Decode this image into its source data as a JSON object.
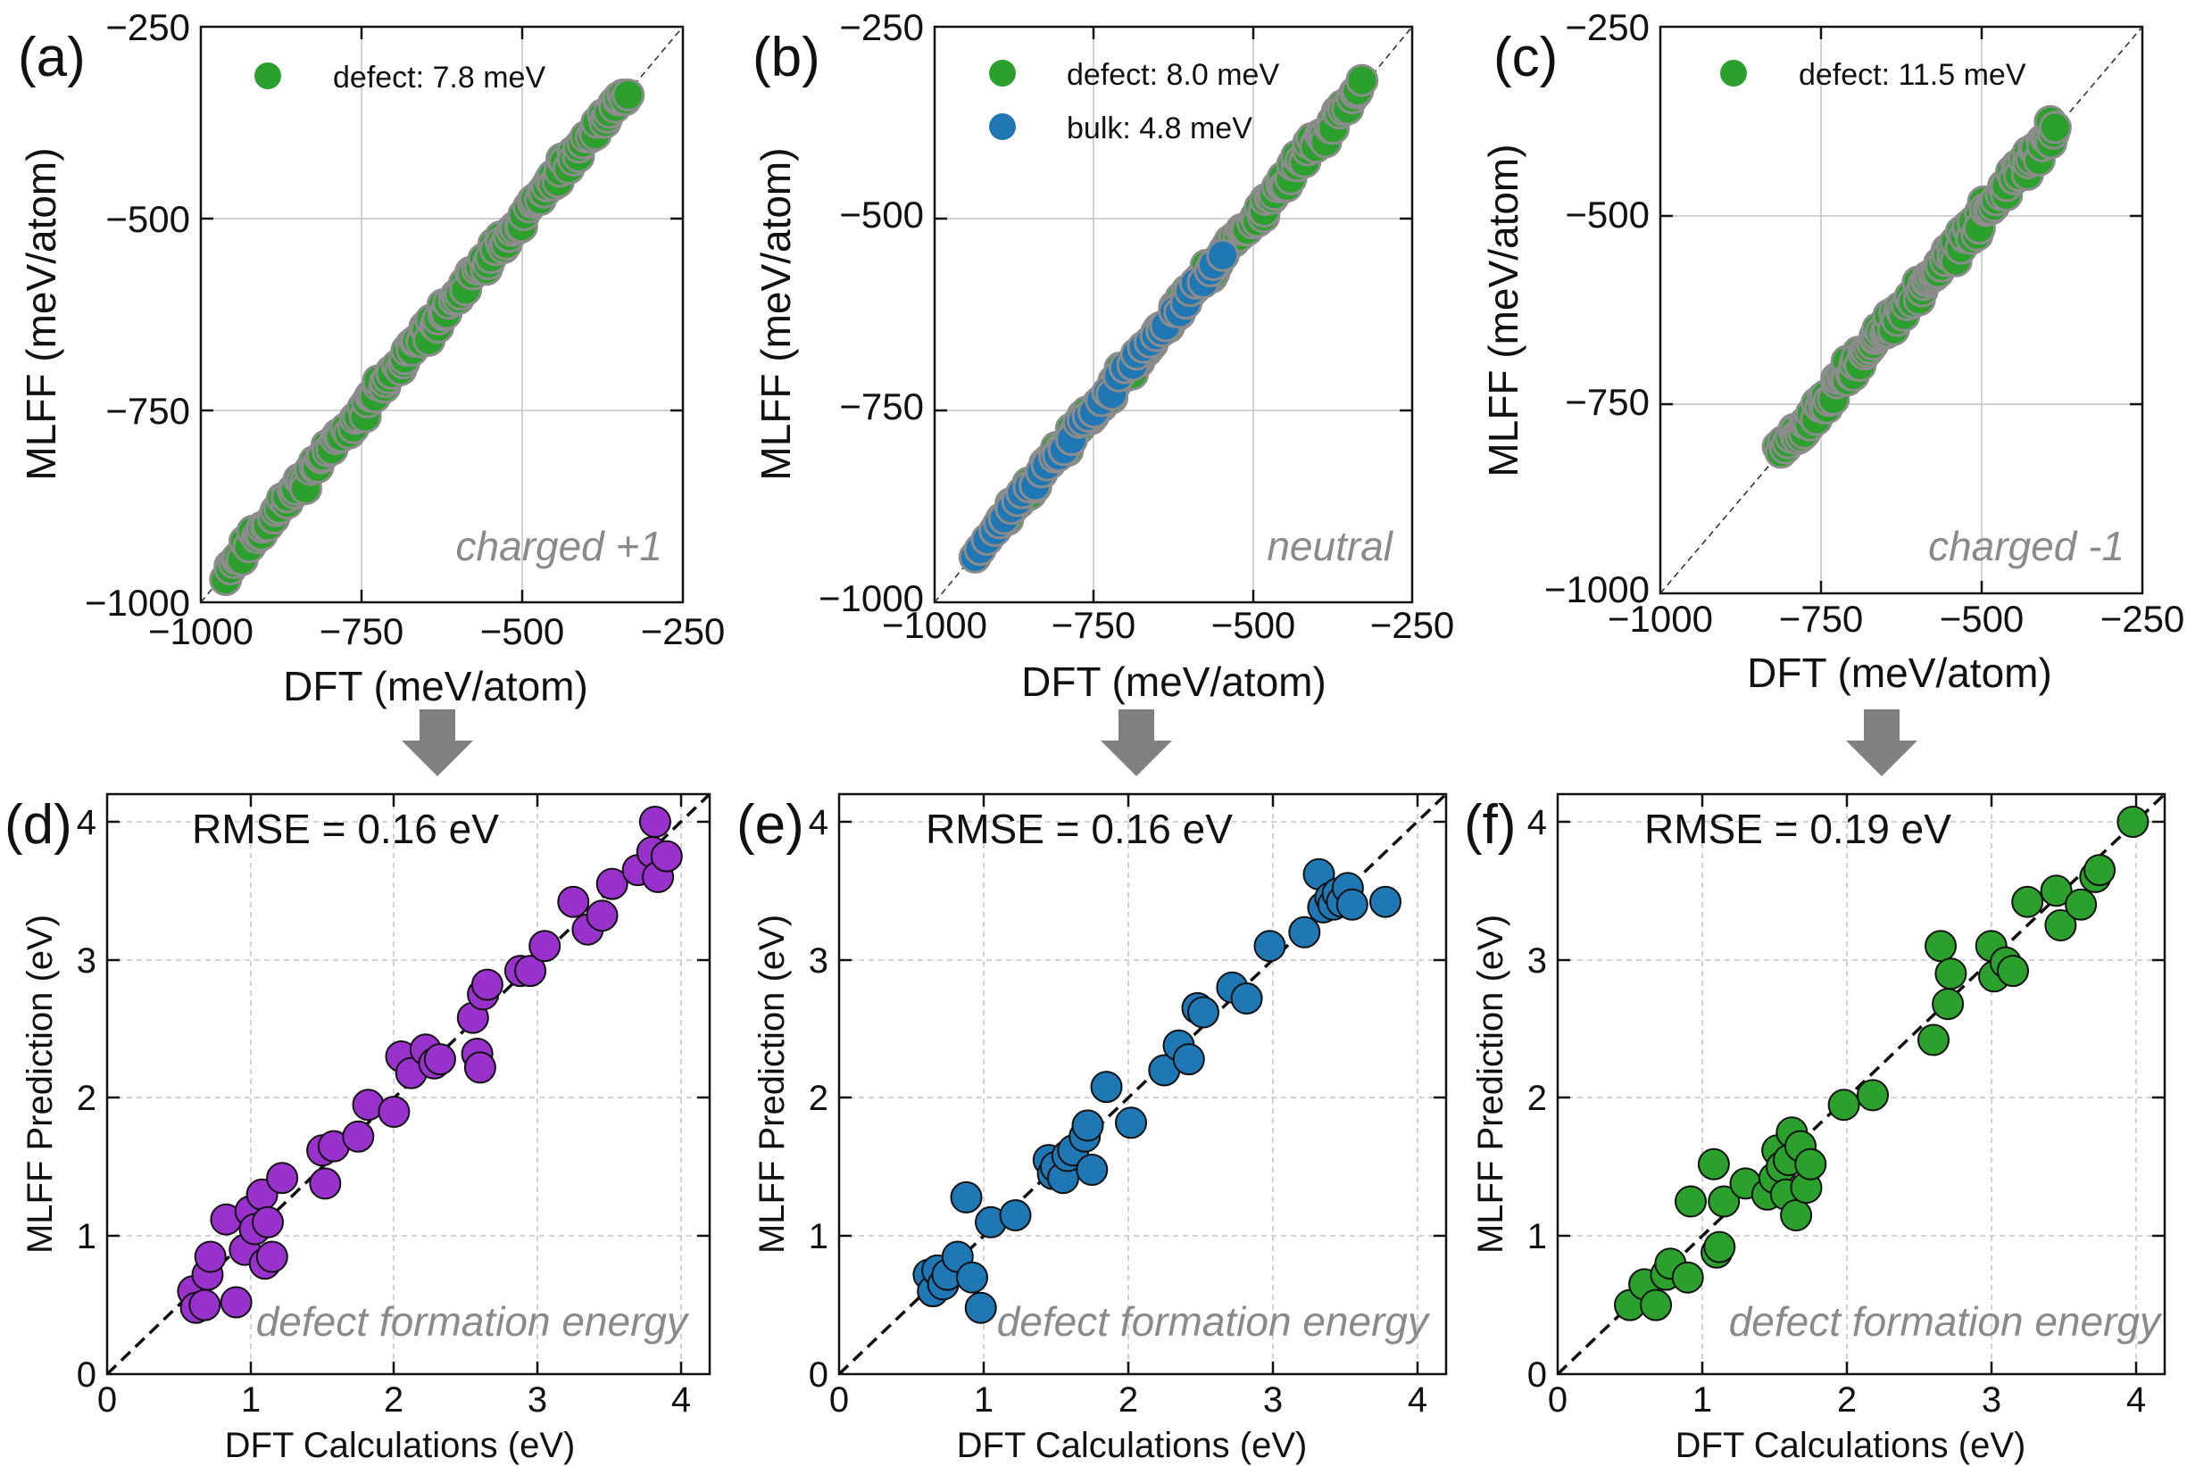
{
  "figure": {
    "colors": {
      "green": "#2ca02c",
      "blue": "#1f77b4",
      "purple": "#9932cc",
      "scatter_edge_top": "#8c8c8c",
      "arrow": "#808080",
      "annotation": "#8a8a8a",
      "grid": "#c4c4c4"
    },
    "arrow_icon": "down-arrow-icon"
  },
  "chart_data": [
    {
      "id": "a",
      "type": "scatter",
      "panel_label": "(a)",
      "title": "",
      "xlabel": "DFT (meV/atom)",
      "ylabel": "MLFF (meV/atom)",
      "xlim": [
        -1000,
        -250
      ],
      "ylim": [
        -1000,
        -250
      ],
      "xticks": [
        -1000,
        -750,
        -500,
        -250
      ],
      "xtick_labels": [
        "−1000",
        "−750",
        "−500",
        "−250"
      ],
      "yticks": [
        -1000,
        -750,
        -500,
        -250
      ],
      "ytick_labels": [
        "−1000",
        "−750",
        "−500",
        "−250"
      ],
      "grid": true,
      "diagonal": true,
      "diagonal_style": "thin",
      "legend": [
        {
          "label": "defect: 7.8 meV",
          "color": "#2ca02c"
        }
      ],
      "legend_position": "top-left",
      "annotation": "charged +1",
      "annotation_position": "bottom-right",
      "series": [
        {
          "name": "defect",
          "color": "#2ca02c",
          "range": [
            -960,
            -335
          ],
          "noise": 8,
          "count": 150,
          "seed": 11
        }
      ]
    },
    {
      "id": "b",
      "type": "scatter",
      "panel_label": "(b)",
      "title": "",
      "xlabel": "DFT (meV/atom)",
      "ylabel": "MLFF (meV/atom)",
      "xlim": [
        -1000,
        -250
      ],
      "ylim": [
        -1000,
        -250
      ],
      "xticks": [
        -1000,
        -750,
        -500,
        -250
      ],
      "xtick_labels": [
        "−1000",
        "−750",
        "−500",
        "−250"
      ],
      "yticks": [
        -1000,
        -750,
        -500,
        -250
      ],
      "ytick_labels": [
        "−1000",
        "−750",
        "−500",
        "−250"
      ],
      "grid": true,
      "diagonal": true,
      "diagonal_style": "thin",
      "legend": [
        {
          "label": "defect: 8.0 meV",
          "color": "#2ca02c"
        },
        {
          "label": "bulk: 4.8 meV",
          "color": "#1f77b4"
        }
      ],
      "legend_position": "top-left",
      "annotation": "neutral",
      "annotation_position": "bottom-right",
      "series": [
        {
          "name": "defect",
          "color": "#2ca02c",
          "range": [
            -900,
            -330
          ],
          "noise": 9,
          "count": 140,
          "seed": 23
        },
        {
          "name": "bulk",
          "color": "#1f77b4",
          "range": [
            -935,
            -550
          ],
          "noise": 5,
          "count": 42,
          "seed": 37
        }
      ]
    },
    {
      "id": "c",
      "type": "scatter",
      "panel_label": "(c)",
      "title": "",
      "xlabel": "DFT (meV/atom)",
      "ylabel": "MLFF (meV/atom)",
      "xlim": [
        -1000,
        -250
      ],
      "ylim": [
        -1000,
        -250
      ],
      "xticks": [
        -1000,
        -750,
        -500,
        -250
      ],
      "xtick_labels": [
        "−1000",
        "−750",
        "−500",
        "−250"
      ],
      "yticks": [
        -1000,
        -750,
        -500,
        -250
      ],
      "ytick_labels": [
        "−1000",
        "−750",
        "−500",
        "−250"
      ],
      "grid": true,
      "diagonal": true,
      "diagonal_style": "thin",
      "legend": [
        {
          "label": "defect: 11.5 meV",
          "color": "#2ca02c"
        }
      ],
      "legend_position": "top-left",
      "annotation": "charged -1",
      "annotation_position": "bottom-right",
      "series": [
        {
          "name": "defect",
          "color": "#2ca02c",
          "range": [
            -815,
            -385
          ],
          "noise": 11,
          "count": 130,
          "seed": 51
        }
      ]
    },
    {
      "id": "d",
      "type": "scatter",
      "panel_label": "(d)",
      "title": "RMSE = 0.16 eV",
      "xlabel": "DFT Calculations (eV)",
      "ylabel": "MLFF Prediction (eV)",
      "xlim": [
        0,
        4.2
      ],
      "ylim": [
        0,
        4.2
      ],
      "xticks": [
        0,
        1,
        2,
        3,
        4
      ],
      "xtick_labels": [
        "0",
        "1",
        "2",
        "3",
        "4"
      ],
      "yticks": [
        0,
        1,
        2,
        3,
        4
      ],
      "ytick_labels": [
        "0",
        "1",
        "2",
        "3",
        "4"
      ],
      "grid": true,
      "grid_style": "dashed",
      "diagonal": true,
      "diagonal_style": "bold",
      "annotation": "defect formation energy",
      "annotation_position": "bottom-right",
      "series": [
        {
          "name": "defect formation energy",
          "color": "#9932cc",
          "points": [
            [
              0.6,
              0.6
            ],
            [
              0.62,
              0.48
            ],
            [
              0.68,
              0.5
            ],
            [
              0.7,
              0.72
            ],
            [
              0.72,
              0.85
            ],
            [
              0.83,
              1.12
            ],
            [
              0.9,
              0.52
            ],
            [
              0.96,
              0.9
            ],
            [
              1.0,
              1.18
            ],
            [
              1.03,
              1.05
            ],
            [
              1.08,
              1.3
            ],
            [
              1.1,
              0.8
            ],
            [
              1.12,
              1.1
            ],
            [
              1.15,
              0.85
            ],
            [
              1.22,
              1.42
            ],
            [
              1.5,
              1.62
            ],
            [
              1.52,
              1.38
            ],
            [
              1.58,
              1.65
            ],
            [
              1.75,
              1.72
            ],
            [
              1.82,
              1.95
            ],
            [
              2.0,
              1.9
            ],
            [
              2.05,
              2.3
            ],
            [
              2.12,
              2.18
            ],
            [
              2.22,
              2.35
            ],
            [
              2.28,
              2.25
            ],
            [
              2.32,
              2.28
            ],
            [
              2.55,
              2.58
            ],
            [
              2.58,
              2.32
            ],
            [
              2.6,
              2.22
            ],
            [
              2.62,
              2.75
            ],
            [
              2.65,
              2.82
            ],
            [
              2.88,
              2.92
            ],
            [
              2.95,
              2.92
            ],
            [
              3.05,
              3.1
            ],
            [
              3.25,
              3.42
            ],
            [
              3.35,
              3.22
            ],
            [
              3.45,
              3.32
            ],
            [
              3.52,
              3.55
            ],
            [
              3.7,
              3.65
            ],
            [
              3.8,
              3.78
            ],
            [
              3.82,
              4.0
            ],
            [
              3.84,
              3.6
            ],
            [
              3.9,
              3.75
            ]
          ]
        }
      ]
    },
    {
      "id": "e",
      "type": "scatter",
      "panel_label": "(e)",
      "title": "RMSE = 0.16 eV",
      "xlabel": "DFT Calculations (eV)",
      "ylabel": "MLFF Prediction (eV)",
      "xlim": [
        0,
        4.2
      ],
      "ylim": [
        0,
        4.2
      ],
      "xticks": [
        0,
        1,
        2,
        3,
        4
      ],
      "xtick_labels": [
        "0",
        "1",
        "2",
        "3",
        "4"
      ],
      "yticks": [
        0,
        1,
        2,
        3,
        4
      ],
      "ytick_labels": [
        "0",
        "1",
        "2",
        "3",
        "4"
      ],
      "grid": true,
      "grid_style": "dashed",
      "diagonal": true,
      "diagonal_style": "bold",
      "annotation": "defect formation energy",
      "annotation_position": "bottom-right",
      "series": [
        {
          "name": "defect formation energy",
          "color": "#1f77b4",
          "points": [
            [
              0.62,
              0.72
            ],
            [
              0.65,
              0.6
            ],
            [
              0.68,
              0.75
            ],
            [
              0.72,
              0.65
            ],
            [
              0.75,
              0.72
            ],
            [
              0.82,
              0.85
            ],
            [
              0.88,
              1.28
            ],
            [
              0.92,
              0.7
            ],
            [
              0.98,
              0.48
            ],
            [
              1.05,
              1.1
            ],
            [
              1.22,
              1.15
            ],
            [
              1.45,
              1.55
            ],
            [
              1.48,
              1.45
            ],
            [
              1.5,
              1.5
            ],
            [
              1.55,
              1.42
            ],
            [
              1.58,
              1.58
            ],
            [
              1.62,
              1.62
            ],
            [
              1.7,
              1.72
            ],
            [
              1.72,
              1.8
            ],
            [
              1.75,
              1.48
            ],
            [
              1.85,
              2.08
            ],
            [
              2.02,
              1.82
            ],
            [
              2.25,
              2.2
            ],
            [
              2.35,
              2.38
            ],
            [
              2.42,
              2.28
            ],
            [
              2.48,
              2.65
            ],
            [
              2.52,
              2.62
            ],
            [
              2.72,
              2.8
            ],
            [
              2.82,
              2.72
            ],
            [
              2.98,
              3.1
            ],
            [
              3.22,
              3.2
            ],
            [
              3.32,
              3.62
            ],
            [
              3.35,
              3.38
            ],
            [
              3.4,
              3.45
            ],
            [
              3.42,
              3.4
            ],
            [
              3.45,
              3.48
            ],
            [
              3.48,
              3.42
            ],
            [
              3.52,
              3.52
            ],
            [
              3.55,
              3.4
            ],
            [
              3.78,
              3.42
            ]
          ]
        }
      ]
    },
    {
      "id": "f",
      "type": "scatter",
      "panel_label": "(f)",
      "title": "RMSE = 0.19 eV",
      "xlabel": "DFT Calculations (eV)",
      "ylabel": "MLFF Prediction (eV)",
      "xlim": [
        0,
        4.2
      ],
      "ylim": [
        0,
        4.2
      ],
      "xticks": [
        0,
        1,
        2,
        3,
        4
      ],
      "xtick_labels": [
        "0",
        "1",
        "2",
        "3",
        "4"
      ],
      "yticks": [
        0,
        1,
        2,
        3,
        4
      ],
      "ytick_labels": [
        "0",
        "1",
        "2",
        "3",
        "4"
      ],
      "grid": true,
      "grid_style": "dashed",
      "diagonal": true,
      "diagonal_style": "bold",
      "annotation": "defect formation energy",
      "annotation_position": "bottom-right",
      "series": [
        {
          "name": "defect formation energy",
          "color": "#2ca02c",
          "points": [
            [
              0.5,
              0.5
            ],
            [
              0.6,
              0.65
            ],
            [
              0.68,
              0.5
            ],
            [
              0.75,
              0.72
            ],
            [
              0.78,
              0.8
            ],
            [
              0.9,
              0.7
            ],
            [
              0.92,
              1.25
            ],
            [
              1.08,
              1.52
            ],
            [
              1.1,
              0.88
            ],
            [
              1.12,
              0.92
            ],
            [
              1.15,
              1.25
            ],
            [
              1.3,
              1.38
            ],
            [
              1.45,
              1.3
            ],
            [
              1.5,
              1.42
            ],
            [
              1.52,
              1.62
            ],
            [
              1.55,
              1.5
            ],
            [
              1.58,
              1.3
            ],
            [
              1.6,
              1.55
            ],
            [
              1.62,
              1.75
            ],
            [
              1.65,
              1.15
            ],
            [
              1.68,
              1.65
            ],
            [
              1.72,
              1.35
            ],
            [
              1.75,
              1.52
            ],
            [
              1.98,
              1.95
            ],
            [
              2.18,
              2.02
            ],
            [
              2.6,
              2.42
            ],
            [
              2.65,
              3.1
            ],
            [
              2.7,
              2.68
            ],
            [
              2.72,
              2.9
            ],
            [
              3.0,
              3.1
            ],
            [
              3.02,
              2.88
            ],
            [
              3.1,
              2.98
            ],
            [
              3.15,
              2.92
            ],
            [
              3.25,
              3.42
            ],
            [
              3.45,
              3.5
            ],
            [
              3.48,
              3.25
            ],
            [
              3.62,
              3.4
            ],
            [
              3.72,
              3.6
            ],
            [
              3.75,
              3.65
            ],
            [
              3.98,
              4.0
            ]
          ]
        }
      ]
    }
  ]
}
